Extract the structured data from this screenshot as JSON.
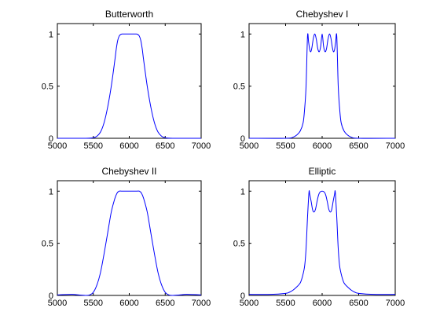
{
  "chart_data": [
    {
      "type": "line",
      "title": "Butterworth",
      "xlim": [
        5000,
        7000
      ],
      "ylim": [
        0,
        1.1
      ],
      "xticks": [
        "5000",
        "5500",
        "6000",
        "6500",
        "7000"
      ],
      "yticks": [
        "0",
        "0.5",
        "1"
      ],
      "grid": false,
      "series": [
        {
          "color": "#0000ff",
          "x": [
            5000,
            5400,
            5500,
            5550,
            5600,
            5650,
            5700,
            5750,
            5800,
            5820,
            5840,
            5860,
            5880,
            5900,
            5950,
            6000,
            6050,
            6100,
            6120,
            6140,
            6160,
            6180,
            6200,
            6250,
            6300,
            6350,
            6400,
            6450,
            6500,
            6600,
            7000
          ],
          "y": [
            0.0,
            0.0,
            0.005,
            0.02,
            0.06,
            0.15,
            0.3,
            0.5,
            0.75,
            0.86,
            0.94,
            0.98,
            0.995,
            1.0,
            1.0,
            1.0,
            1.0,
            1.0,
            0.995,
            0.98,
            0.94,
            0.86,
            0.75,
            0.5,
            0.3,
            0.15,
            0.06,
            0.02,
            0.005,
            0.0,
            0.0
          ]
        }
      ]
    },
    {
      "type": "line",
      "title": "Chebyshev I",
      "xlim": [
        5000,
        7000
      ],
      "ylim": [
        0,
        1.1
      ],
      "xticks": [
        "5000",
        "5500",
        "6000",
        "6500",
        "7000"
      ],
      "yticks": [
        "0",
        "0.5",
        "1"
      ],
      "grid": false,
      "series": [
        {
          "color": "#0000ff",
          "x": [
            5000,
            5500,
            5600,
            5650,
            5700,
            5740,
            5760,
            5780,
            5800,
            5815,
            5830,
            5845,
            5860,
            5880,
            5900,
            5920,
            5940,
            5960,
            5980,
            6000,
            6020,
            6040,
            6060,
            6080,
            6100,
            6120,
            6140,
            6155,
            6170,
            6185,
            6200,
            6220,
            6240,
            6260,
            6300,
            6350,
            6400,
            6500,
            7000
          ],
          "y": [
            0.0,
            0.0,
            0.01,
            0.03,
            0.07,
            0.15,
            0.28,
            0.5,
            0.98,
            0.92,
            0.85,
            0.83,
            0.87,
            0.96,
            1.0,
            0.95,
            0.86,
            0.83,
            0.88,
            1.0,
            0.88,
            0.83,
            0.86,
            0.95,
            1.0,
            0.96,
            0.87,
            0.83,
            0.85,
            0.92,
            0.98,
            0.5,
            0.28,
            0.15,
            0.07,
            0.03,
            0.01,
            0.0,
            0.0
          ]
        }
      ]
    },
    {
      "type": "line",
      "title": "Chebyshev II",
      "xlim": [
        5000,
        7000
      ],
      "ylim": [
        0,
        1.1
      ],
      "xticks": [
        "5000",
        "5500",
        "6000",
        "6500",
        "7000"
      ],
      "yticks": [
        "0",
        "0.5",
        "1"
      ],
      "grid": false,
      "series": [
        {
          "color": "#0000ff",
          "x": [
            5000,
            5200,
            5300,
            5400,
            5450,
            5500,
            5550,
            5600,
            5650,
            5700,
            5750,
            5800,
            5830,
            5860,
            5900,
            6000,
            6100,
            6140,
            6170,
            6200,
            6250,
            6300,
            6350,
            6400,
            6450,
            6500,
            6550,
            6600,
            6700,
            6800,
            7000
          ],
          "y": [
            0.005,
            0.01,
            0.005,
            0.0,
            0.005,
            0.03,
            0.1,
            0.22,
            0.4,
            0.6,
            0.8,
            0.93,
            0.98,
            1.0,
            1.0,
            1.0,
            1.0,
            1.0,
            0.98,
            0.93,
            0.8,
            0.6,
            0.4,
            0.22,
            0.1,
            0.03,
            0.005,
            0.0,
            0.005,
            0.01,
            0.005
          ]
        }
      ]
    },
    {
      "type": "line",
      "title": "Elliptic",
      "xlim": [
        5000,
        7000
      ],
      "ylim": [
        0,
        1.1
      ],
      "xticks": [
        "5000",
        "5500",
        "6000",
        "6500",
        "7000"
      ],
      "yticks": [
        "0",
        "0.5",
        "1"
      ],
      "grid": false,
      "series": [
        {
          "color": "#0000ff",
          "x": [
            5000,
            5300,
            5500,
            5550,
            5600,
            5650,
            5700,
            5730,
            5760,
            5780,
            5800,
            5820,
            5830,
            5850,
            5870,
            5890,
            5910,
            5930,
            5950,
            5970,
            6000,
            6030,
            6050,
            6070,
            6090,
            6110,
            6130,
            6150,
            6170,
            6180,
            6200,
            6220,
            6240,
            6270,
            6300,
            6350,
            6400,
            6450,
            6500,
            6700,
            7000
          ],
          "y": [
            0.01,
            0.01,
            0.02,
            0.03,
            0.05,
            0.08,
            0.12,
            0.18,
            0.28,
            0.45,
            0.75,
            0.99,
            0.97,
            0.9,
            0.82,
            0.8,
            0.83,
            0.9,
            0.96,
            0.99,
            1.0,
            0.99,
            0.96,
            0.9,
            0.83,
            0.8,
            0.82,
            0.9,
            0.97,
            0.99,
            0.75,
            0.45,
            0.28,
            0.18,
            0.12,
            0.08,
            0.05,
            0.03,
            0.02,
            0.01,
            0.01
          ]
        }
      ]
    }
  ]
}
